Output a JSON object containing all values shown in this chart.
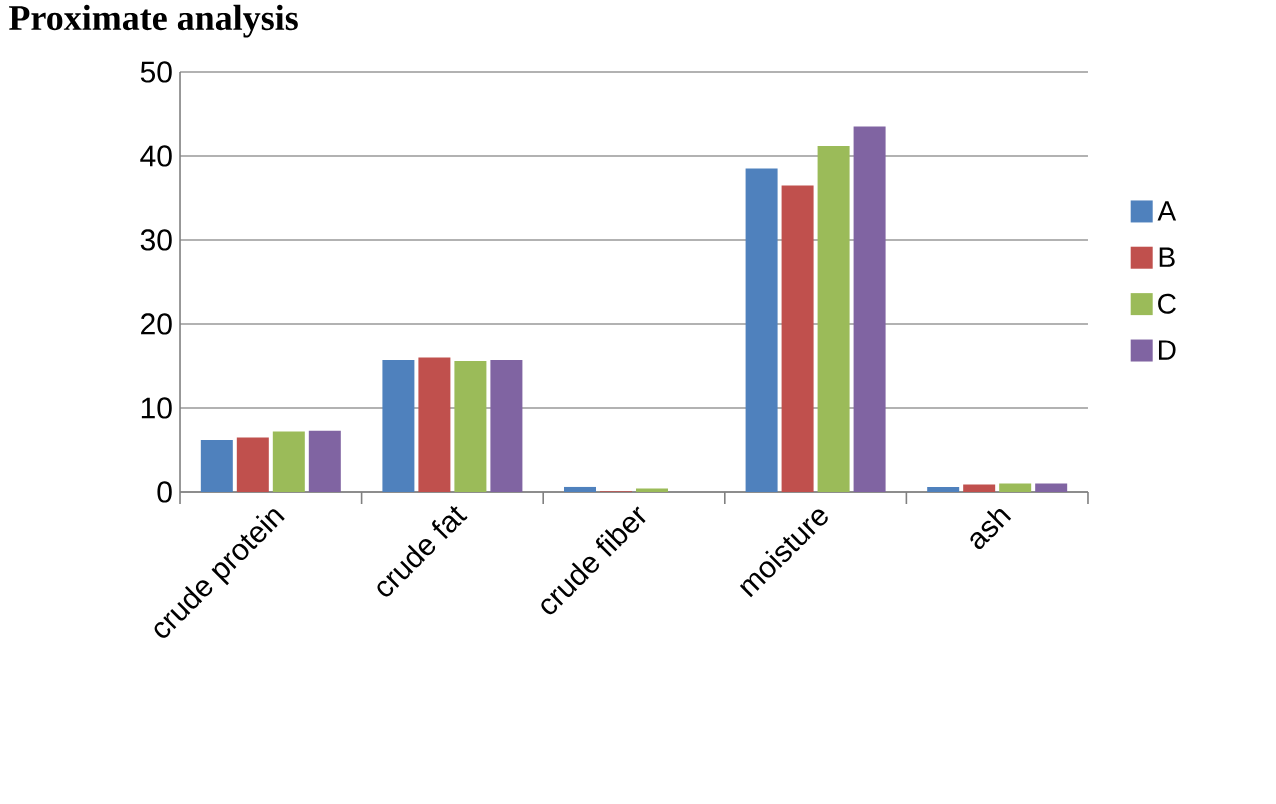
{
  "chart_data": {
    "type": "bar",
    "title": "Proximate analysis",
    "categories": [
      "crude protein",
      "crude fat",
      "crude fiber",
      "moisture",
      "ash"
    ],
    "series": [
      {
        "name": "A",
        "color": "#4f81bd",
        "values": [
          6.2,
          15.7,
          0.6,
          38.5,
          0.6
        ]
      },
      {
        "name": "B",
        "color": "#c0504d",
        "values": [
          6.5,
          16.0,
          0.1,
          36.5,
          0.9
        ]
      },
      {
        "name": "C",
        "color": "#9bbb59",
        "values": [
          7.2,
          15.6,
          0.4,
          41.2,
          1.0
        ]
      },
      {
        "name": "D",
        "color": "#8064a2",
        "values": [
          7.3,
          15.7,
          null,
          43.5,
          1.0
        ]
      }
    ],
    "ylim": [
      0,
      50
    ],
    "yticks": [
      0,
      10,
      20,
      30,
      40,
      50
    ],
    "grid": "y",
    "legend": "right"
  }
}
